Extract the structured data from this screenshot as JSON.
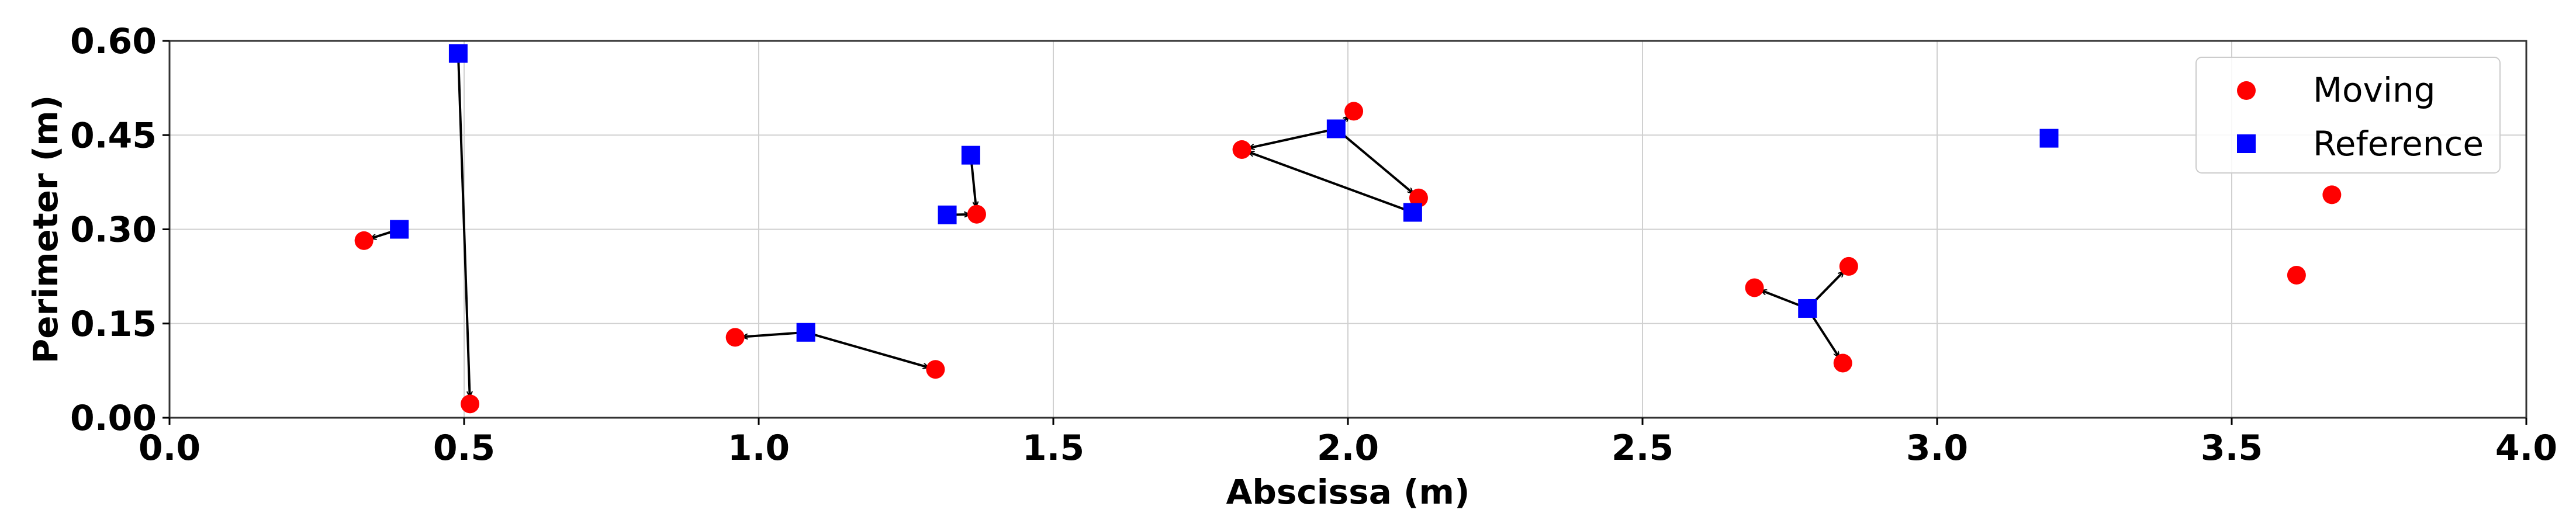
{
  "chart_data": {
    "type": "scatter",
    "xlabel": "Abscissa (m)",
    "ylabel": "Perimeter (m)",
    "xlim": [
      0.0,
      4.0
    ],
    "ylim": [
      0.0,
      0.6
    ],
    "xticks": [
      "0.0",
      "0.5",
      "1.0",
      "1.5",
      "2.0",
      "2.5",
      "3.0",
      "3.5",
      "4.0"
    ],
    "yticks": [
      "0.00",
      "0.15",
      "0.30",
      "0.45",
      "0.60"
    ],
    "grid": true,
    "legend_position": "top-right",
    "series": [
      {
        "name": "Moving",
        "marker": "circle",
        "color": "#ff0000",
        "points": [
          {
            "x": 0.33,
            "y": 0.282
          },
          {
            "x": 0.51,
            "y": 0.022
          },
          {
            "x": 0.96,
            "y": 0.128
          },
          {
            "x": 1.3,
            "y": 0.077
          },
          {
            "x": 1.37,
            "y": 0.324
          },
          {
            "x": 1.82,
            "y": 0.427
          },
          {
            "x": 2.01,
            "y": 0.488
          },
          {
            "x": 2.12,
            "y": 0.35
          },
          {
            "x": 2.69,
            "y": 0.207
          },
          {
            "x": 2.85,
            "y": 0.241
          },
          {
            "x": 2.84,
            "y": 0.087
          },
          {
            "x": 3.61,
            "y": 0.227
          },
          {
            "x": 3.67,
            "y": 0.355
          }
        ]
      },
      {
        "name": "Reference",
        "marker": "square",
        "color": "#0000ff",
        "points": [
          {
            "x": 0.39,
            "y": 0.3
          },
          {
            "x": 0.49,
            "y": 0.58
          },
          {
            "x": 1.08,
            "y": 0.136
          },
          {
            "x": 1.32,
            "y": 0.323
          },
          {
            "x": 1.36,
            "y": 0.418
          },
          {
            "x": 1.98,
            "y": 0.46
          },
          {
            "x": 2.11,
            "y": 0.327
          },
          {
            "x": 2.78,
            "y": 0.174
          },
          {
            "x": 3.19,
            "y": 0.445
          }
        ]
      }
    ],
    "arrows": [
      {
        "from": [
          0.39,
          0.3
        ],
        "to": [
          0.33,
          0.282
        ]
      },
      {
        "from": [
          0.49,
          0.58
        ],
        "to": [
          0.51,
          0.022
        ]
      },
      {
        "from": [
          1.08,
          0.136
        ],
        "to": [
          0.96,
          0.128
        ]
      },
      {
        "from": [
          1.08,
          0.136
        ],
        "to": [
          1.3,
          0.077
        ]
      },
      {
        "from": [
          1.32,
          0.323
        ],
        "to": [
          1.37,
          0.324
        ]
      },
      {
        "from": [
          1.36,
          0.418
        ],
        "to": [
          1.37,
          0.324
        ]
      },
      {
        "from": [
          1.98,
          0.46
        ],
        "to": [
          1.82,
          0.427
        ]
      },
      {
        "from": [
          1.98,
          0.46
        ],
        "to": [
          2.01,
          0.488
        ]
      },
      {
        "from": [
          1.98,
          0.46
        ],
        "to": [
          2.12,
          0.35
        ]
      },
      {
        "from": [
          2.11,
          0.327
        ],
        "to": [
          1.82,
          0.427
        ]
      },
      {
        "from": [
          2.78,
          0.174
        ],
        "to": [
          2.69,
          0.207
        ]
      },
      {
        "from": [
          2.78,
          0.174
        ],
        "to": [
          2.85,
          0.241
        ]
      },
      {
        "from": [
          2.78,
          0.174
        ],
        "to": [
          2.84,
          0.087
        ]
      }
    ]
  }
}
